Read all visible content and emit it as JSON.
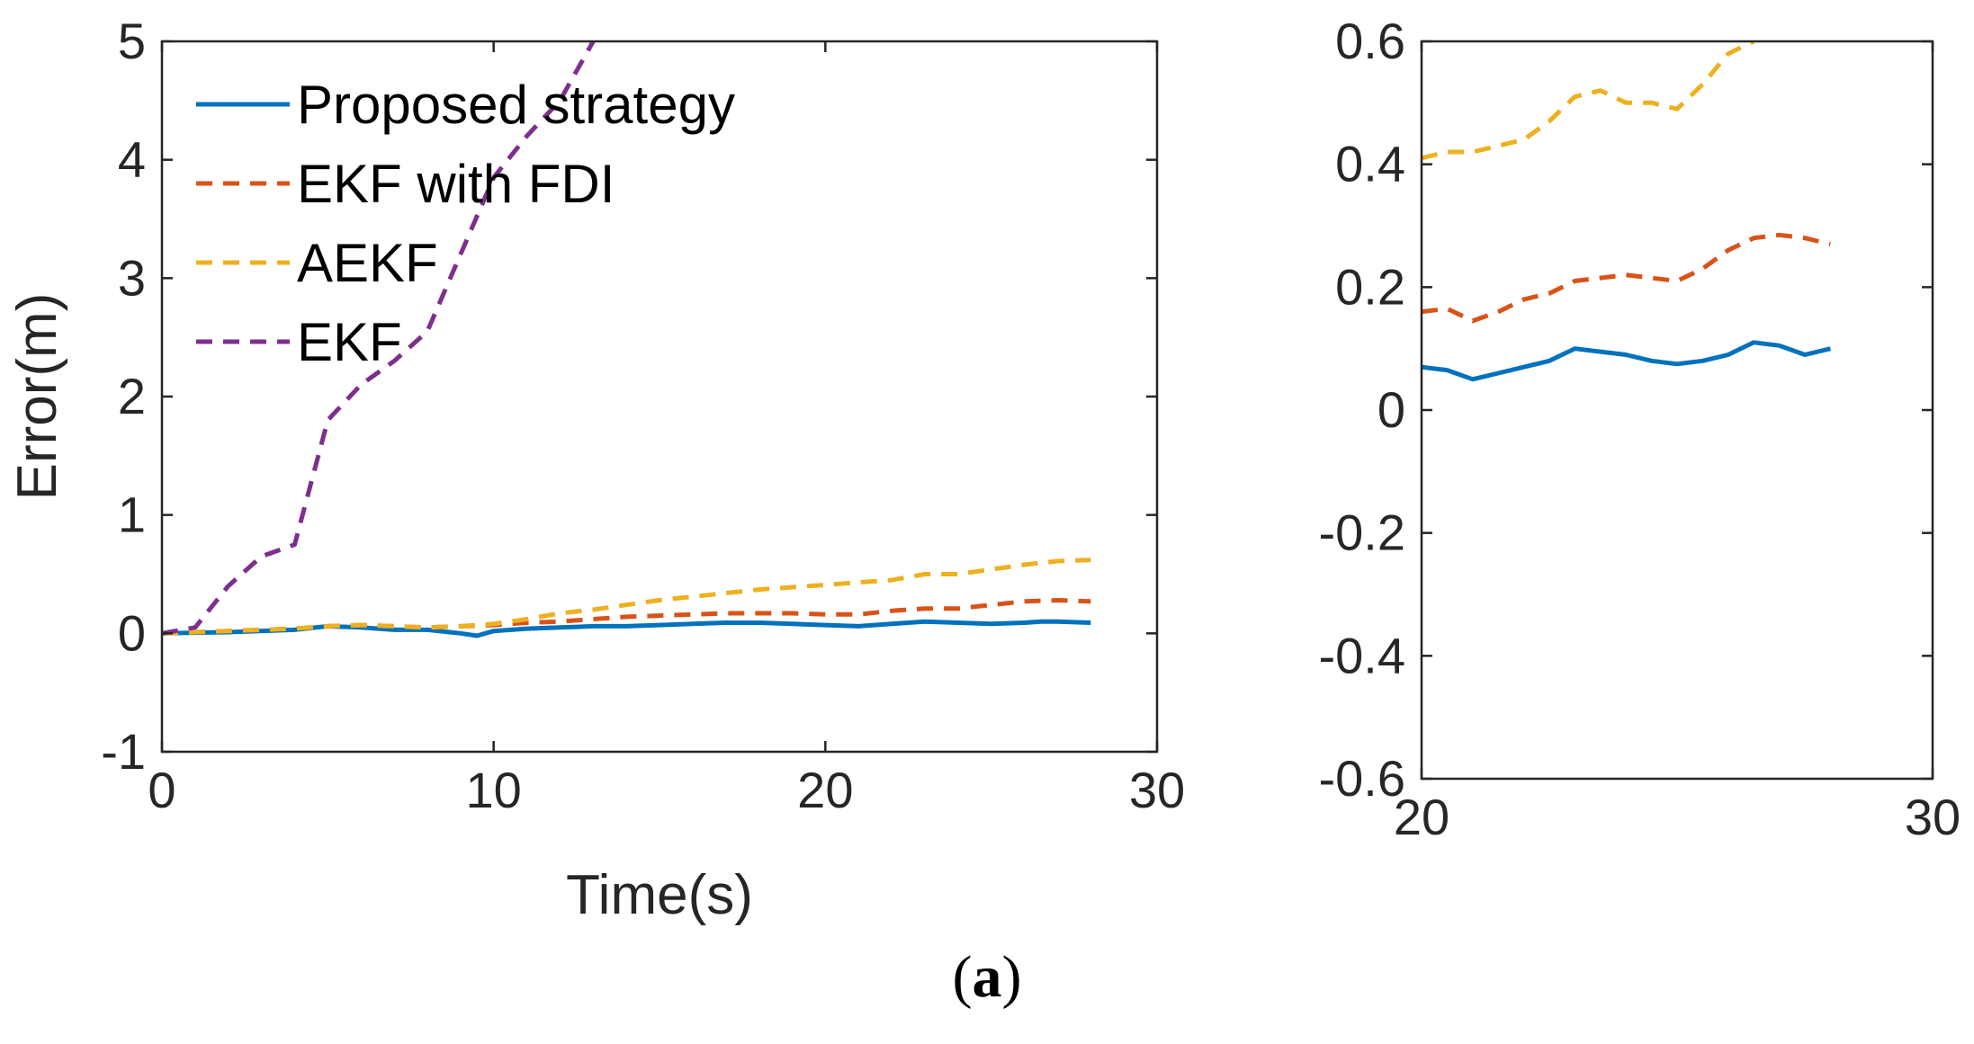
{
  "caption": {
    "open": "(",
    "letter": "a",
    "close": ")"
  },
  "chart_data": [
    {
      "type": "line",
      "title": "",
      "xlabel": "Time(s)",
      "ylabel": "Error(m)",
      "xlim": [
        0,
        30
      ],
      "ylim": [
        -1,
        5
      ],
      "xticks": [
        0,
        10,
        20,
        30
      ],
      "yticks": [
        -1,
        0,
        1,
        2,
        3,
        4,
        5
      ],
      "grid": false,
      "legend": "top-left",
      "series": [
        {
          "name": "Proposed strategy",
          "color": "#0072BD",
          "style": "solid",
          "x": [
            0,
            2,
            4,
            5,
            6,
            7,
            8,
            9,
            9.5,
            10,
            11,
            12,
            13,
            14,
            15,
            16,
            17,
            18,
            19,
            20,
            21,
            22,
            23,
            24,
            25,
            26,
            26.5,
            27,
            28
          ],
          "y": [
            0,
            0.01,
            0.03,
            0.06,
            0.05,
            0.03,
            0.03,
            0.0,
            -0.02,
            0.02,
            0.04,
            0.05,
            0.06,
            0.06,
            0.07,
            0.08,
            0.09,
            0.09,
            0.08,
            0.07,
            0.06,
            0.08,
            0.1,
            0.09,
            0.08,
            0.09,
            0.1,
            0.1,
            0.09
          ]
        },
        {
          "name": "EKF with FDI",
          "color": "#D95319",
          "style": "dashed",
          "x": [
            0,
            2,
            4,
            5,
            6,
            7,
            8,
            9,
            10,
            11,
            12,
            13,
            14,
            15,
            16,
            17,
            18,
            19,
            20,
            21,
            22,
            23,
            24,
            25,
            26,
            27,
            28
          ],
          "y": [
            0,
            0.02,
            0.04,
            0.06,
            0.07,
            0.06,
            0.05,
            0.06,
            0.07,
            0.09,
            0.1,
            0.12,
            0.14,
            0.15,
            0.16,
            0.17,
            0.17,
            0.17,
            0.16,
            0.16,
            0.19,
            0.21,
            0.21,
            0.24,
            0.27,
            0.28,
            0.27
          ]
        },
        {
          "name": "AEKF",
          "color": "#EDB120",
          "style": "dashed",
          "x": [
            0,
            2,
            4,
            5,
            6,
            7,
            8,
            9,
            10,
            11,
            12,
            13,
            14,
            15,
            16,
            17,
            18,
            19,
            20,
            21,
            22,
            23,
            24,
            25,
            26,
            27,
            28
          ],
          "y": [
            0,
            0.02,
            0.04,
            0.06,
            0.07,
            0.06,
            0.05,
            0.06,
            0.08,
            0.12,
            0.17,
            0.2,
            0.24,
            0.28,
            0.31,
            0.34,
            0.37,
            0.39,
            0.41,
            0.43,
            0.45,
            0.5,
            0.5,
            0.54,
            0.58,
            0.61,
            0.62
          ]
        },
        {
          "name": "EKF",
          "color": "#7E2F8E",
          "style": "dashed",
          "x": [
            0,
            1,
            2,
            3,
            4,
            5,
            6,
            7,
            8,
            9,
            10,
            11,
            12,
            13
          ],
          "y": [
            0,
            0.05,
            0.4,
            0.65,
            0.75,
            1.8,
            2.1,
            2.3,
            2.55,
            3.2,
            3.85,
            4.2,
            4.5,
            5.0
          ]
        }
      ]
    },
    {
      "type": "line",
      "title": "",
      "xlabel": "",
      "ylabel": "",
      "xlim": [
        20,
        30
      ],
      "ylim": [
        -0.6,
        0.6
      ],
      "xticks": [
        20,
        30
      ],
      "yticks": [
        -0.6,
        -0.4,
        -0.2,
        0,
        0.2,
        0.4,
        0.6
      ],
      "grid": false,
      "series": [
        {
          "name": "Proposed strategy",
          "color": "#0072BD",
          "style": "solid",
          "x": [
            20,
            20.5,
            21,
            21.5,
            22,
            22.5,
            23,
            23.5,
            24,
            24.5,
            25,
            25.5,
            26,
            26.5,
            27,
            27.5,
            28
          ],
          "y": [
            0.07,
            0.065,
            0.05,
            0.06,
            0.07,
            0.08,
            0.1,
            0.095,
            0.09,
            0.08,
            0.075,
            0.08,
            0.09,
            0.11,
            0.105,
            0.09,
            0.1
          ]
        },
        {
          "name": "EKF with FDI",
          "color": "#D95319",
          "style": "dashed",
          "x": [
            20,
            20.5,
            21,
            21.5,
            22,
            22.5,
            23,
            23.5,
            24,
            24.5,
            25,
            25.5,
            26,
            26.5,
            27,
            27.5,
            28
          ],
          "y": [
            0.16,
            0.165,
            0.145,
            0.16,
            0.18,
            0.19,
            0.21,
            0.215,
            0.22,
            0.215,
            0.21,
            0.23,
            0.26,
            0.28,
            0.285,
            0.28,
            0.27
          ]
        },
        {
          "name": "AEKF",
          "color": "#EDB120",
          "style": "dashed",
          "x": [
            20,
            20.5,
            21,
            21.5,
            22,
            22.5,
            23,
            23.5,
            24,
            24.5,
            25,
            25.5,
            26,
            26.5
          ],
          "y": [
            0.41,
            0.42,
            0.42,
            0.43,
            0.44,
            0.47,
            0.51,
            0.52,
            0.5,
            0.5,
            0.49,
            0.53,
            0.58,
            0.6
          ]
        }
      ]
    }
  ]
}
